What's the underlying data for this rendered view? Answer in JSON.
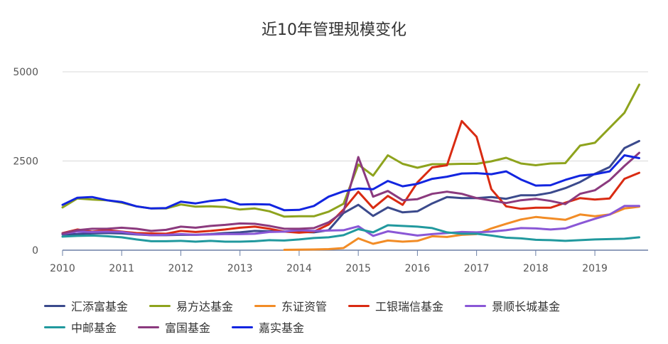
{
  "chart_data": {
    "type": "line",
    "title": "近10年管理规模变化",
    "xlabel": "",
    "ylabel": "",
    "xlim": [
      2010,
      2019.9
    ],
    "ylim": [
      0,
      5000
    ],
    "yticks": [
      0,
      2500,
      5000
    ],
    "xticks": [
      "2010",
      "2011",
      "2012",
      "2013",
      "2014",
      "2015",
      "2016",
      "2017",
      "2018",
      "2019"
    ],
    "x": [
      2010.0,
      2010.25,
      2010.5,
      2010.75,
      2011.0,
      2011.25,
      2011.5,
      2011.75,
      2012.0,
      2012.25,
      2012.5,
      2012.75,
      2013.0,
      2013.25,
      2013.5,
      2013.75,
      2014.0,
      2014.25,
      2014.5,
      2014.75,
      2015.0,
      2015.25,
      2015.5,
      2015.75,
      2016.0,
      2016.25,
      2016.5,
      2016.75,
      2017.0,
      2017.25,
      2017.5,
      2017.75,
      2018.0,
      2018.25,
      2018.5,
      2018.75,
      2019.0,
      2019.25,
      2019.5,
      2019.75
    ],
    "series": [
      {
        "name": "汇添富基金",
        "color": "#3b4a8c",
        "values": [
          440,
          450,
          470,
          480,
          470,
          440,
          420,
          420,
          430,
          430,
          450,
          480,
          500,
          540,
          530,
          520,
          510,
          500,
          560,
          1040,
          1270,
          960,
          1200,
          1060,
          1090,
          1310,
          1490,
          1460,
          1460,
          1490,
          1440,
          1540,
          1540,
          1610,
          1740,
          1910,
          2140,
          2330,
          2860,
          3060
        ]
      },
      {
        "name": "易方达基金",
        "color": "#8ea31d",
        "values": [
          1200,
          1450,
          1420,
          1400,
          1330,
          1230,
          1170,
          1170,
          1280,
          1220,
          1230,
          1210,
          1140,
          1170,
          1090,
          940,
          950,
          950,
          1080,
          1300,
          2400,
          2090,
          2660,
          2420,
          2310,
          2410,
          2410,
          2420,
          2420,
          2490,
          2590,
          2430,
          2380,
          2430,
          2440,
          2930,
          3010,
          3430,
          3850,
          4640
        ]
      },
      {
        "name": "东证资管",
        "color": "#f28c26",
        "values": [
          null,
          null,
          null,
          null,
          null,
          null,
          null,
          null,
          null,
          null,
          null,
          null,
          null,
          null,
          null,
          10,
          15,
          20,
          30,
          60,
          330,
          180,
          270,
          240,
          260,
          390,
          370,
          430,
          450,
          610,
          740,
          860,
          930,
          890,
          850,
          1000,
          950,
          1000,
          1170,
          1220
        ]
      },
      {
        "name": "工银瑞信基金",
        "color": "#d92b12",
        "values": [
          480,
          580,
          520,
          560,
          520,
          480,
          470,
          460,
          540,
          510,
          540,
          580,
          630,
          660,
          600,
          520,
          490,
          520,
          720,
          1140,
          1640,
          1180,
          1520,
          1270,
          1900,
          2320,
          2380,
          3620,
          3180,
          1710,
          1230,
          1160,
          1190,
          1190,
          1330,
          1460,
          1420,
          1450,
          2000,
          2170
        ]
      },
      {
        "name": "景顺长城基金",
        "color": "#8a57d6",
        "values": [
          460,
          520,
          510,
          520,
          510,
          450,
          420,
          430,
          450,
          430,
          440,
          450,
          450,
          460,
          510,
          520,
          560,
          540,
          550,
          560,
          670,
          400,
          530,
          470,
          410,
          450,
          480,
          510,
          500,
          520,
          560,
          620,
          610,
          580,
          610,
          750,
          880,
          1000,
          1240,
          1240
        ]
      },
      {
        "name": "中邮基金",
        "color": "#21999e",
        "values": [
          380,
          400,
          410,
          390,
          360,
          300,
          250,
          250,
          260,
          240,
          260,
          240,
          240,
          250,
          280,
          270,
          300,
          340,
          360,
          420,
          590,
          500,
          700,
          680,
          660,
          620,
          500,
          460,
          460,
          410,
          350,
          330,
          290,
          280,
          260,
          280,
          300,
          310,
          320,
          360
        ]
      },
      {
        "name": "富国基金",
        "color": "#8b3a7e",
        "values": [
          470,
          560,
          600,
          600,
          630,
          600,
          540,
          570,
          660,
          630,
          680,
          710,
          750,
          740,
          680,
          600,
          600,
          620,
          780,
          1080,
          2610,
          1500,
          1660,
          1400,
          1430,
          1580,
          1640,
          1580,
          1460,
          1390,
          1320,
          1400,
          1440,
          1380,
          1290,
          1580,
          1680,
          1960,
          2360,
          2730
        ]
      },
      {
        "name": "嘉实基金",
        "color": "#1225e0",
        "values": [
          1270,
          1470,
          1490,
          1400,
          1350,
          1230,
          1170,
          1180,
          1360,
          1310,
          1380,
          1420,
          1280,
          1290,
          1280,
          1120,
          1130,
          1240,
          1500,
          1650,
          1730,
          1710,
          1940,
          1790,
          1860,
          2000,
          2060,
          2150,
          2160,
          2130,
          2210,
          1980,
          1810,
          1820,
          1970,
          2090,
          2130,
          2210,
          2660,
          2580
        ]
      }
    ]
  }
}
